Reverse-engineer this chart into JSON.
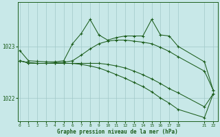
{
  "xlabel": "Graphe pression niveau de la mer (hPa)",
  "bg_color": "#c8e8e8",
  "grid_color": "#a0c8c8",
  "line_color": "#1a5c1a",
  "x_ticks": [
    0,
    1,
    2,
    3,
    4,
    5,
    6,
    7,
    8,
    9,
    10,
    11,
    12,
    13,
    14,
    15,
    16,
    17,
    18,
    21,
    22
  ],
  "xlim": [
    -0.2,
    22.5
  ],
  "ylim": [
    1021.55,
    1023.85
  ],
  "y_ticks": [
    1022,
    1023
  ],
  "lines": [
    {
      "x": [
        0,
        1,
        2,
        3,
        4,
        5,
        6,
        7,
        8,
        9,
        10,
        11,
        12,
        13,
        14,
        15,
        16,
        17,
        18,
        21,
        22
      ],
      "y": [
        1022.92,
        1022.72,
        1022.71,
        1022.7,
        1022.7,
        1022.72,
        1023.05,
        1023.25,
        1023.52,
        1023.22,
        1023.12,
        1023.17,
        1023.2,
        1023.2,
        1023.2,
        1023.52,
        1023.22,
        1023.2,
        1023.0,
        1022.7,
        1022.15
      ],
      "marker": "+"
    },
    {
      "x": [
        0,
        1,
        2,
        3,
        4,
        5,
        6,
        7,
        8,
        9,
        10,
        11,
        12,
        13,
        14,
        15,
        16,
        17,
        18,
        21,
        22
      ],
      "y": [
        1022.72,
        1022.68,
        1022.67,
        1022.67,
        1022.68,
        1022.69,
        1022.72,
        1022.83,
        1022.95,
        1023.05,
        1023.1,
        1023.12,
        1023.12,
        1023.1,
        1023.08,
        1023.05,
        1022.98,
        1022.9,
        1022.8,
        1022.52,
        1022.15
      ],
      "marker": "+"
    },
    {
      "x": [
        0,
        1,
        2,
        3,
        4,
        5,
        6,
        7,
        8,
        9,
        10,
        11,
        12,
        13,
        14,
        15,
        16,
        17,
        18,
        21,
        22
      ],
      "y": [
        1022.72,
        1022.68,
        1022.67,
        1022.67,
        1022.67,
        1022.67,
        1022.67,
        1022.67,
        1022.67,
        1022.67,
        1022.65,
        1022.62,
        1022.58,
        1022.52,
        1022.45,
        1022.37,
        1022.28,
        1022.18,
        1022.1,
        1021.83,
        1022.08
      ],
      "marker": "+"
    },
    {
      "x": [
        0,
        1,
        2,
        3,
        4,
        5,
        6,
        7,
        8,
        9,
        10,
        11,
        12,
        13,
        14,
        15,
        16,
        17,
        18,
        21,
        22
      ],
      "y": [
        1022.72,
        1022.68,
        1022.67,
        1022.67,
        1022.67,
        1022.67,
        1022.67,
        1022.65,
        1022.62,
        1022.58,
        1022.52,
        1022.45,
        1022.38,
        1022.3,
        1022.22,
        1022.12,
        1022.0,
        1021.9,
        1021.78,
        1021.62,
        1022.08
      ],
      "marker": "+"
    }
  ]
}
